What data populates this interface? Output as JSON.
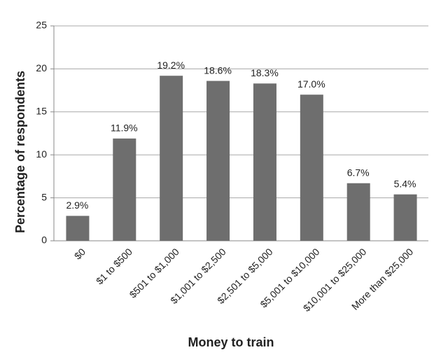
{
  "chart_data": {
    "type": "bar",
    "x_label": "Money to train",
    "y_label": "Percentage of respondents",
    "categories": [
      "$0",
      "$1 to $500",
      "$501 to $1,000",
      "$1,001 to $2,500",
      "$2,501 to $5,000",
      "$5,001 to $10,000",
      "$10,001 to $25,000",
      "More than $25,000"
    ],
    "values": [
      2.9,
      11.9,
      19.2,
      18.6,
      18.3,
      17.0,
      6.7,
      5.4
    ],
    "value_labels": [
      "2.9%",
      "11.9%",
      "19.2%",
      "18.6%",
      "18.3%",
      "17.0%",
      "6.7%",
      "5.4%"
    ],
    "color": "#6e6e6e",
    "ylim": [
      0,
      25
    ],
    "yticks": [
      0,
      5,
      10,
      15,
      20,
      25
    ],
    "grid": true
  }
}
